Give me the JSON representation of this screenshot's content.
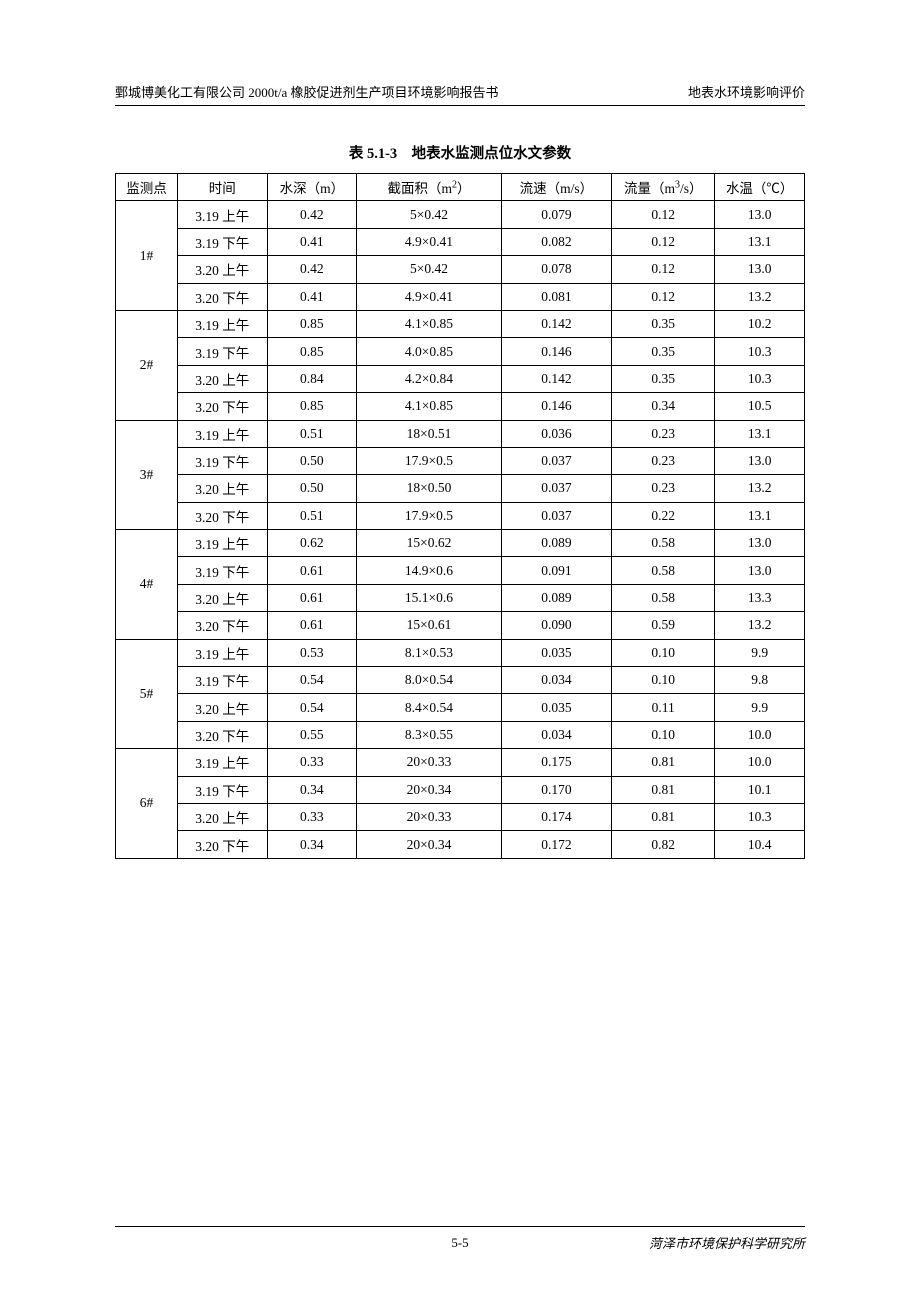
{
  "header": {
    "left": "鄄城博美化工有限公司 2000t/a 橡胶促进剂生产项目环境影响报告书",
    "right": "地表水环境影响评价"
  },
  "tableTitle": "表 5.1-3　地表水监测点位水文参数",
  "columns": {
    "point": "监测点",
    "time": "时间",
    "depth": "水深（m）",
    "area_prefix": "截面积（m",
    "area_suffix": "）",
    "velocity": "流速（m/s）",
    "flow_prefix": "流量（m",
    "flow_suffix": "/s）",
    "temp": "水温（℃）"
  },
  "groups": [
    {
      "point": "1#",
      "rows": [
        {
          "time": "3.19 上午",
          "depth": "0.42",
          "area": "5×0.42",
          "velocity": "0.079",
          "flow": "0.12",
          "temp": "13.0"
        },
        {
          "time": "3.19 下午",
          "depth": "0.41",
          "area": "4.9×0.41",
          "velocity": "0.082",
          "flow": "0.12",
          "temp": "13.1"
        },
        {
          "time": "3.20 上午",
          "depth": "0.42",
          "area": "5×0.42",
          "velocity": "0.078",
          "flow": "0.12",
          "temp": "13.0"
        },
        {
          "time": "3.20 下午",
          "depth": "0.41",
          "area": "4.9×0.41",
          "velocity": "0.081",
          "flow": "0.12",
          "temp": "13.2"
        }
      ]
    },
    {
      "point": "2#",
      "rows": [
        {
          "time": "3.19 上午",
          "depth": "0.85",
          "area": "4.1×0.85",
          "velocity": "0.142",
          "flow": "0.35",
          "temp": "10.2"
        },
        {
          "time": "3.19 下午",
          "depth": "0.85",
          "area": "4.0×0.85",
          "velocity": "0.146",
          "flow": "0.35",
          "temp": "10.3"
        },
        {
          "time": "3.20 上午",
          "depth": "0.84",
          "area": "4.2×0.84",
          "velocity": "0.142",
          "flow": "0.35",
          "temp": "10.3"
        },
        {
          "time": "3.20 下午",
          "depth": "0.85",
          "area": "4.1×0.85",
          "velocity": "0.146",
          "flow": "0.34",
          "temp": "10.5"
        }
      ]
    },
    {
      "point": "3#",
      "rows": [
        {
          "time": "3.19 上午",
          "depth": "0.51",
          "area": "18×0.51",
          "velocity": "0.036",
          "flow": "0.23",
          "temp": "13.1"
        },
        {
          "time": "3.19 下午",
          "depth": "0.50",
          "area": "17.9×0.5",
          "velocity": "0.037",
          "flow": "0.23",
          "temp": "13.0"
        },
        {
          "time": "3.20 上午",
          "depth": "0.50",
          "area": "18×0.50",
          "velocity": "0.037",
          "flow": "0.23",
          "temp": "13.2"
        },
        {
          "time": "3.20 下午",
          "depth": "0.51",
          "area": "17.9×0.5",
          "velocity": "0.037",
          "flow": "0.22",
          "temp": "13.1"
        }
      ]
    },
    {
      "point": "4#",
      "rows": [
        {
          "time": "3.19 上午",
          "depth": "0.62",
          "area": "15×0.62",
          "velocity": "0.089",
          "flow": "0.58",
          "temp": "13.0"
        },
        {
          "time": "3.19 下午",
          "depth": "0.61",
          "area": "14.9×0.6",
          "velocity": "0.091",
          "flow": "0.58",
          "temp": "13.0"
        },
        {
          "time": "3.20 上午",
          "depth": "0.61",
          "area": "15.1×0.6",
          "velocity": "0.089",
          "flow": "0.58",
          "temp": "13.3"
        },
        {
          "time": "3.20 下午",
          "depth": "0.61",
          "area": "15×0.61",
          "velocity": "0.090",
          "flow": "0.59",
          "temp": "13.2"
        }
      ]
    },
    {
      "point": "5#",
      "rows": [
        {
          "time": "3.19 上午",
          "depth": "0.53",
          "area": "8.1×0.53",
          "velocity": "0.035",
          "flow": "0.10",
          "temp": "9.9"
        },
        {
          "time": "3.19 下午",
          "depth": "0.54",
          "area": "8.0×0.54",
          "velocity": "0.034",
          "flow": "0.10",
          "temp": "9.8"
        },
        {
          "time": "3.20 上午",
          "depth": "0.54",
          "area": "8.4×0.54",
          "velocity": "0.035",
          "flow": "0.11",
          "temp": "9.9"
        },
        {
          "time": "3.20 下午",
          "depth": "0.55",
          "area": "8.3×0.55",
          "velocity": "0.034",
          "flow": "0.10",
          "temp": "10.0"
        }
      ]
    },
    {
      "point": "6#",
      "rows": [
        {
          "time": "3.19 上午",
          "depth": "0.33",
          "area": "20×0.33",
          "velocity": "0.175",
          "flow": "0.81",
          "temp": "10.0"
        },
        {
          "time": "3.19 下午",
          "depth": "0.34",
          "area": "20×0.34",
          "velocity": "0.170",
          "flow": "0.81",
          "temp": "10.1"
        },
        {
          "time": "3.20 上午",
          "depth": "0.33",
          "area": "20×0.33",
          "velocity": "0.174",
          "flow": "0.81",
          "temp": "10.3"
        },
        {
          "time": "3.20 下午",
          "depth": "0.34",
          "area": "20×0.34",
          "velocity": "0.172",
          "flow": "0.82",
          "temp": "10.4"
        }
      ]
    }
  ],
  "footer": {
    "pageNumber": "5-5",
    "right": "菏泽市环境保护科学研究所"
  }
}
